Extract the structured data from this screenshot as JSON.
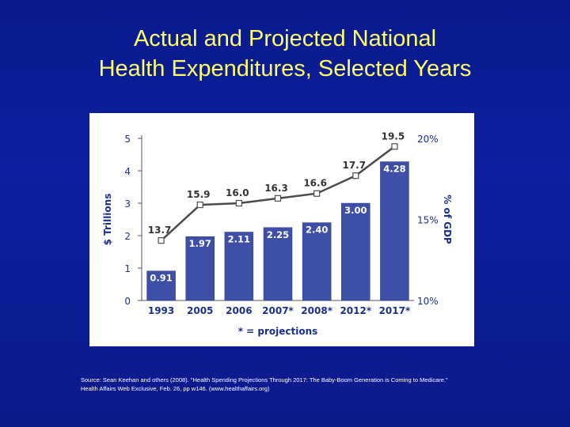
{
  "slide": {
    "title_line1": "Actual and Projected National",
    "title_line2": "Health Expenditures, Selected Years",
    "source": "Source: Sean Keehan and others (2008). \"Health Spending Projections Through 2017: The Baby-Boom Generation is Coming to Medicare.\" Health Affairs Web Exclusive, Feb. 26, pp w146. (www.healthaffairs.org)"
  },
  "colors": {
    "background": "#0b1b8f",
    "title": "#ffff66",
    "bar": "#3d4fa6",
    "line": "#4a4a4a",
    "text": "#1a2f8a"
  },
  "chart_data": {
    "type": "bar",
    "categories": [
      "1993",
      "2005",
      "2006",
      "2007*",
      "2008*",
      "2012*",
      "2017*"
    ],
    "ylabel": "$ Trillions",
    "y2label": "% of GDP",
    "ylim": [
      0,
      5
    ],
    "yticks": [
      "0",
      "1",
      "2",
      "3",
      "4",
      "5"
    ],
    "y2ticks": [
      "10%",
      "15%",
      "20%"
    ],
    "y2lim": [
      10,
      20
    ],
    "footnote": "* = projections",
    "series": [
      {
        "values": [
          0.91,
          1.97,
          2.11,
          2.25,
          2.4,
          3.0,
          4.28
        ],
        "labels": [
          "0.91",
          "1.97",
          "2.11",
          "2.25",
          "2.40",
          "3.00",
          "4.28"
        ],
        "axis": "left",
        "kind": "bar"
      },
      {
        "values": [
          13.7,
          15.9,
          16.0,
          16.3,
          16.6,
          17.7,
          19.5
        ],
        "labels": [
          "13.7",
          "15.9",
          "16.0",
          "16.3",
          "16.6",
          "17.7",
          "19.5"
        ],
        "axis": "right",
        "kind": "line"
      }
    ],
    "grid": false
  }
}
